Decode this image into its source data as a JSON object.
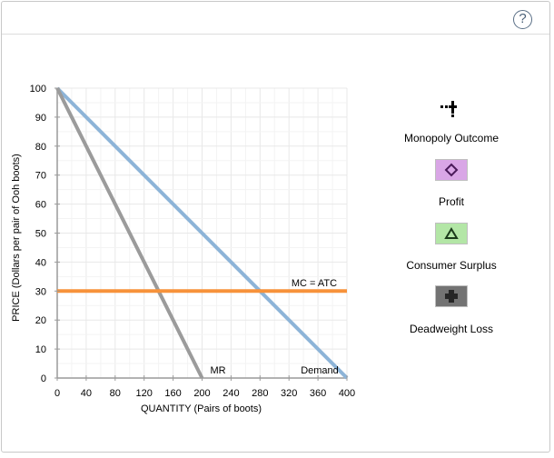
{
  "header": {
    "help_label": "?"
  },
  "chart_data": {
    "type": "line",
    "xlabel": "QUANTITY (Pairs of boots)",
    "ylabel": "PRICE (Dollars per pair of Ooh boots)",
    "xlim": [
      0,
      400
    ],
    "ylim": [
      0,
      100
    ],
    "x_ticks": [
      0,
      40,
      80,
      120,
      160,
      200,
      240,
      280,
      320,
      360,
      400
    ],
    "y_ticks": [
      0,
      10,
      20,
      30,
      40,
      50,
      60,
      70,
      80,
      90,
      100
    ],
    "grid": true,
    "series": [
      {
        "name": "Demand",
        "color": "#8db4d8",
        "points": [
          [
            0,
            100
          ],
          [
            400,
            0
          ]
        ]
      },
      {
        "name": "MR",
        "color": "#9b9b9b",
        "points": [
          [
            0,
            100
          ],
          [
            200,
            0
          ]
        ]
      },
      {
        "name": "MC = ATC",
        "color": "#f7923a",
        "points": [
          [
            0,
            30
          ],
          [
            400,
            30
          ]
        ]
      }
    ]
  },
  "tools": [
    {
      "id": "monopoly-outcome",
      "label": "Monopoly Outcome",
      "icon": "cross-plus-icon",
      "color": "#000000"
    },
    {
      "id": "profit",
      "label": "Profit",
      "icon": "diamond-icon",
      "color": "#d9a6e6"
    },
    {
      "id": "consumer-surplus",
      "label": "Consumer Surplus",
      "icon": "triangle-icon",
      "color": "#b3e6a6"
    },
    {
      "id": "deadweight-loss",
      "label": "Deadweight Loss",
      "icon": "plus-icon",
      "color": "#737373"
    }
  ]
}
